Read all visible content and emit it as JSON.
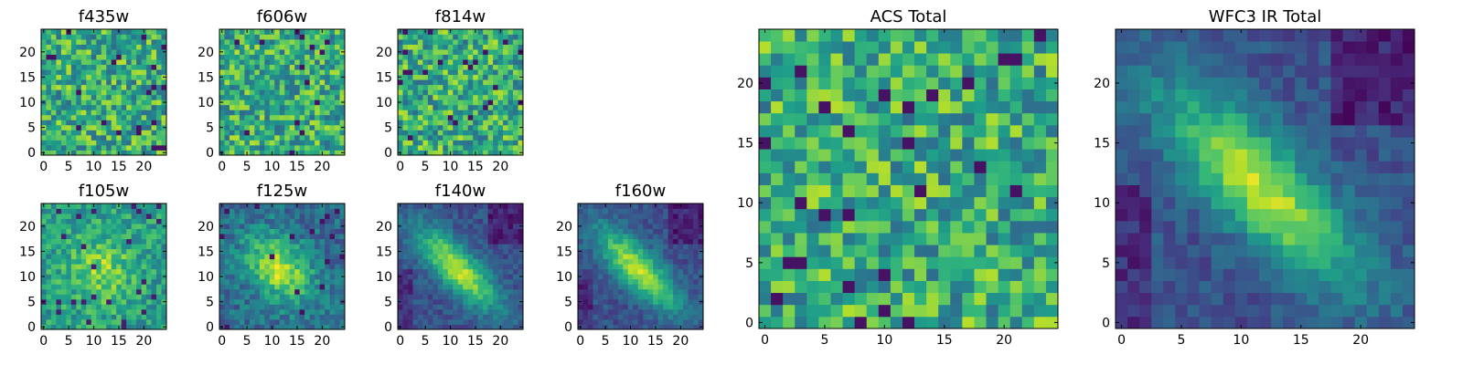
{
  "chart_data": [
    {
      "type": "heatmap",
      "title": "f435w",
      "colormap": "viridis",
      "pattern": "noise",
      "grid_size": 25,
      "xlim": [
        0,
        24
      ],
      "ylim": [
        0,
        24
      ],
      "xticks": [
        "0",
        "5",
        "10",
        "15",
        "20"
      ],
      "yticks": [
        "0",
        "5",
        "10",
        "15",
        "20"
      ]
    },
    {
      "type": "heatmap",
      "title": "f606w",
      "colormap": "viridis",
      "pattern": "noise",
      "grid_size": 25,
      "xlim": [
        0,
        24
      ],
      "ylim": [
        0,
        24
      ],
      "xticks": [
        "0",
        "5",
        "10",
        "15",
        "20"
      ],
      "yticks": [
        "0",
        "5",
        "10",
        "15",
        "20"
      ]
    },
    {
      "type": "heatmap",
      "title": "f814w",
      "colormap": "viridis",
      "pattern": "noise",
      "grid_size": 25,
      "xlim": [
        0,
        24
      ],
      "ylim": [
        0,
        24
      ],
      "xticks": [
        "0",
        "5",
        "10",
        "15",
        "20"
      ],
      "yticks": [
        "0",
        "5",
        "10",
        "15",
        "20"
      ]
    },
    {
      "type": "heatmap",
      "title": "f105w",
      "colormap": "viridis",
      "pattern": "weak-source",
      "grid_size": 25,
      "xlim": [
        0,
        24
      ],
      "ylim": [
        0,
        24
      ],
      "xticks": [
        "0",
        "5",
        "10",
        "15",
        "20"
      ],
      "yticks": [
        "0",
        "5",
        "10",
        "15",
        "20"
      ]
    },
    {
      "type": "heatmap",
      "title": "f125w",
      "colormap": "viridis",
      "pattern": "source",
      "grid_size": 25,
      "xlim": [
        0,
        24
      ],
      "ylim": [
        0,
        24
      ],
      "xticks": [
        "0",
        "5",
        "10",
        "15",
        "20"
      ],
      "yticks": [
        "0",
        "5",
        "10",
        "15",
        "20"
      ]
    },
    {
      "type": "heatmap",
      "title": "f140w",
      "colormap": "viridis",
      "pattern": "elongated-source",
      "grid_size": 25,
      "xlim": [
        0,
        24
      ],
      "ylim": [
        0,
        24
      ],
      "xticks": [
        "0",
        "5",
        "10",
        "15",
        "20"
      ],
      "yticks": [
        "0",
        "5",
        "10",
        "15",
        "20"
      ]
    },
    {
      "type": "heatmap",
      "title": "f160w",
      "colormap": "viridis",
      "pattern": "elongated-source",
      "grid_size": 25,
      "xlim": [
        0,
        24
      ],
      "ylim": [
        0,
        24
      ],
      "xticks": [
        "0",
        "5",
        "10",
        "15",
        "20"
      ],
      "yticks": [
        "0",
        "5",
        "10",
        "15",
        "20"
      ]
    },
    {
      "type": "heatmap",
      "title": "ACS Total",
      "colormap": "viridis",
      "pattern": "noise",
      "grid_size": 25,
      "xlim": [
        0,
        24
      ],
      "ylim": [
        0,
        24
      ],
      "xticks": [
        "0",
        "5",
        "10",
        "15",
        "20"
      ],
      "yticks": [
        "0",
        "5",
        "10",
        "15",
        "20"
      ]
    },
    {
      "type": "heatmap",
      "title": "WFC3 IR Total",
      "colormap": "viridis",
      "pattern": "elongated-source",
      "grid_size": 25,
      "xlim": [
        0,
        24
      ],
      "ylim": [
        0,
        24
      ],
      "xticks": [
        "0",
        "5",
        "10",
        "15",
        "20"
      ],
      "yticks": [
        "0",
        "5",
        "10",
        "15",
        "20"
      ]
    }
  ]
}
